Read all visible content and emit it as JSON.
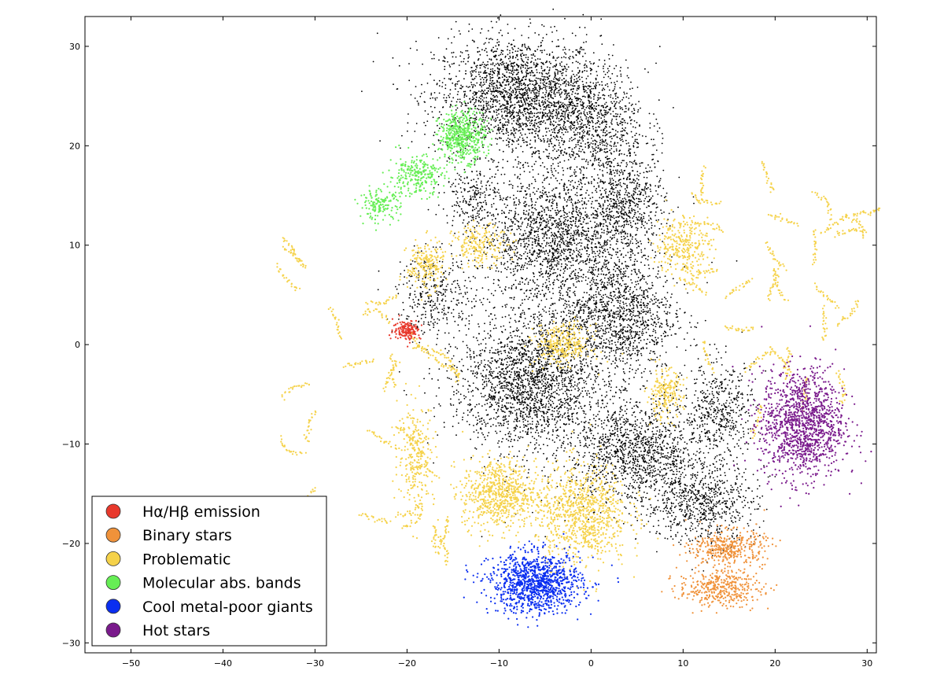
{
  "chart_data": {
    "type": "scatter",
    "title": "",
    "xlabel": "",
    "ylabel": "",
    "xlim": [
      -55,
      31
    ],
    "ylim": [
      -31,
      33
    ],
    "grid": false,
    "x_ticks": [
      -50,
      -40,
      -30,
      -20,
      -10,
      0,
      10,
      20,
      30
    ],
    "x_tick_labels": [
      "−50",
      "−40",
      "−30",
      "−20",
      "−10",
      "0",
      "10",
      "20",
      "30"
    ],
    "y_ticks": [
      -30,
      -20,
      -10,
      0,
      10,
      20,
      30
    ],
    "y_tick_labels": [
      "−30",
      "−20",
      "−10",
      "0",
      "10",
      "20",
      "30"
    ],
    "legend": {
      "placement": "lower-left",
      "entries": [
        {
          "label": "Hα/Hβ emission",
          "color": "#e8392c"
        },
        {
          "label": "Binary stars",
          "color": "#f0923a"
        },
        {
          "label": "Problematic",
          "color": "#f5d24a"
        },
        {
          "label": "Molecular abs. bands",
          "color": "#66ee55"
        },
        {
          "label": "Cool metal-poor giants",
          "color": "#0a2ef0"
        },
        {
          "label": "Hot stars",
          "color": "#7a1a8c"
        }
      ]
    },
    "series": [
      {
        "name": "",
        "color": "#000000",
        "clusters": [
          {
            "cx": -8,
            "cy": 25,
            "rx": 9,
            "ry": 6,
            "n": 2200
          },
          {
            "cx": 0,
            "cy": 22,
            "rx": 6,
            "ry": 6,
            "n": 900
          },
          {
            "cx": -4,
            "cy": 11,
            "rx": 8,
            "ry": 6,
            "n": 1500
          },
          {
            "cx": 4,
            "cy": 14,
            "rx": 4,
            "ry": 5,
            "n": 600
          },
          {
            "cx": -7,
            "cy": -4,
            "rx": 7,
            "ry": 6,
            "n": 1500
          },
          {
            "cx": 3,
            "cy": 3,
            "rx": 6,
            "ry": 6,
            "n": 1100
          },
          {
            "cx": 5,
            "cy": -11,
            "rx": 7,
            "ry": 5,
            "n": 1200
          },
          {
            "cx": 12,
            "cy": -16,
            "rx": 6,
            "ry": 4,
            "n": 700
          },
          {
            "cx": 14,
            "cy": -7,
            "rx": 4,
            "ry": 5,
            "n": 500
          },
          {
            "cx": -17,
            "cy": 5,
            "rx": 4,
            "ry": 4,
            "n": 300
          },
          {
            "cx": -13,
            "cy": 15,
            "rx": 3,
            "ry": 3,
            "n": 200
          },
          {
            "cx": -4,
            "cy": 0,
            "rx": 12,
            "ry": 14,
            "n": 1200
          }
        ]
      },
      {
        "name": "Problematic",
        "color": "#f5d24a",
        "clusters": [
          {
            "cx": -10,
            "cy": -15,
            "rx": 4,
            "ry": 3.5,
            "n": 700
          },
          {
            "cx": -1,
            "cy": -17,
            "rx": 5,
            "ry": 5,
            "n": 900
          },
          {
            "cx": -3,
            "cy": 0,
            "rx": 3,
            "ry": 2,
            "n": 300
          },
          {
            "cx": -18,
            "cy": 8,
            "rx": 2,
            "ry": 2.5,
            "n": 200
          },
          {
            "cx": -12,
            "cy": 10,
            "rx": 3,
            "ry": 2,
            "n": 200
          },
          {
            "cx": 10,
            "cy": 10,
            "rx": 3,
            "ry": 3,
            "n": 300
          },
          {
            "cx": 8,
            "cy": -5,
            "rx": 2,
            "ry": 2.5,
            "n": 200
          },
          {
            "cx": -19,
            "cy": -11,
            "rx": 2,
            "ry": 5,
            "n": 250
          },
          {
            "cx": 19,
            "cy": 5,
            "rx": 10,
            "ry": 12,
            "n": 700,
            "arcs": true
          },
          {
            "cx": -23,
            "cy": -3,
            "rx": 9,
            "ry": 12,
            "n": 500,
            "arcs": true
          },
          {
            "cx": -20,
            "cy": -19,
            "rx": 4,
            "ry": 2,
            "n": 120,
            "arcs": true
          }
        ]
      },
      {
        "name": "Molecular abs. bands",
        "color": "#66ee55",
        "clusters": [
          {
            "cx": -14,
            "cy": 21,
            "rx": 2.5,
            "ry": 2.5,
            "n": 500
          },
          {
            "cx": -19,
            "cy": 17,
            "rx": 3,
            "ry": 2,
            "n": 250
          },
          {
            "cx": -23,
            "cy": 14,
            "rx": 2.2,
            "ry": 1.5,
            "n": 150
          }
        ]
      },
      {
        "name": "Hα/Hβ emission",
        "color": "#e8392c",
        "clusters": [
          {
            "cx": -20,
            "cy": 1.5,
            "rx": 1.5,
            "ry": 1,
            "n": 160
          }
        ]
      },
      {
        "name": "Cool metal-poor giants",
        "color": "#0a2ef0",
        "clusters": [
          {
            "cx": -6,
            "cy": -24,
            "rx": 5,
            "ry": 3,
            "n": 1100
          }
        ]
      },
      {
        "name": "Binary stars",
        "color": "#f0923a",
        "clusters": [
          {
            "cx": 15,
            "cy": -20.5,
            "rx": 4,
            "ry": 1.8,
            "n": 380
          },
          {
            "cx": 14,
            "cy": -24.5,
            "rx": 4.5,
            "ry": 1.8,
            "n": 380
          }
        ]
      },
      {
        "name": "Hot stars",
        "color": "#7a1a8c",
        "clusters": [
          {
            "cx": 23,
            "cy": -8,
            "rx": 4.5,
            "ry": 5.5,
            "n": 1300
          }
        ]
      }
    ]
  }
}
